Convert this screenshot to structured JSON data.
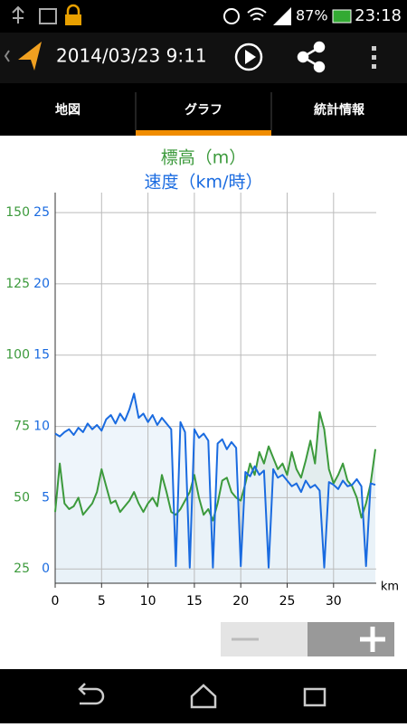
{
  "status_bar": {
    "battery": "87%",
    "time": "23:18"
  },
  "toolbar": {
    "title": "2014/03/23 9:11"
  },
  "tabs": [
    "地図",
    "グラフ",
    "統計情報"
  ],
  "chart_data": {
    "type": "line",
    "x": [
      0,
      0.5,
      1,
      1.5,
      2,
      2.5,
      3,
      3.5,
      4,
      4.5,
      5,
      5.5,
      6,
      6.5,
      7,
      7.5,
      8,
      8.5,
      9,
      9.5,
      10,
      10.5,
      11,
      11.5,
      12,
      12.5,
      13,
      13.5,
      14,
      14.5,
      15,
      15.5,
      16,
      16.5,
      17,
      17.5,
      18,
      18.5,
      19,
      19.5,
      20,
      20.5,
      21,
      21.5,
      22,
      22.5,
      23,
      23.5,
      24,
      24.5,
      25,
      25.5,
      26,
      26.5,
      27,
      27.5,
      28,
      28.5,
      29,
      29.5,
      30,
      30.5,
      31,
      31.5,
      32,
      32.5,
      33,
      33.5,
      34,
      34.5
    ],
    "series": [
      {
        "name": "標高（m）",
        "color": "#3c9a3c",
        "fill": "#dce9ea",
        "values": [
          45,
          62,
          48,
          46,
          47,
          50,
          44,
          46,
          48,
          52,
          60,
          54,
          48,
          49,
          45,
          47,
          49,
          52,
          48,
          45,
          48,
          50,
          47,
          58,
          52,
          45,
          44,
          46,
          49,
          52,
          58,
          50,
          44,
          46,
          42,
          48,
          56,
          57,
          52,
          50,
          49,
          55,
          62,
          58,
          66,
          62,
          68,
          64,
          60,
          62,
          58,
          66,
          60,
          57,
          63,
          70,
          62,
          80,
          74,
          60,
          55,
          58,
          62,
          56,
          54,
          50,
          43,
          48,
          55,
          67
        ]
      },
      {
        "name": "速度（km/時）",
        "color": "#1a6be0",
        "fill": "#eaf2fa",
        "axis": "y2",
        "values": [
          9.5,
          9.3,
          9.6,
          9.8,
          9.4,
          9.9,
          9.6,
          10.2,
          9.8,
          10.1,
          9.7,
          10.5,
          10.8,
          10.2,
          10.9,
          10.4,
          11.2,
          12.3,
          10.6,
          10.9,
          10.3,
          10.8,
          10.1,
          10.6,
          10.2,
          9.8,
          0.2,
          10.3,
          9.6,
          0.1,
          9.8,
          9.2,
          9.5,
          9.0,
          0.1,
          8.8,
          9.1,
          8.4,
          8.9,
          8.5,
          0.2,
          6.8,
          6.5,
          7.2,
          6.6,
          6.9,
          0.1,
          7.0,
          6.4,
          6.6,
          6.2,
          5.8,
          6.0,
          5.4,
          6.2,
          5.7,
          5.9,
          5.5,
          0.1,
          6.1,
          5.9,
          5.6,
          6.2,
          5.8,
          5.9,
          6.3,
          5.8,
          0.2,
          6.0,
          5.9
        ]
      }
    ],
    "xlabel": "km",
    "xlim": [
      0,
      34.6
    ],
    "xticks": [
      0,
      5,
      10,
      15,
      20,
      25,
      30
    ],
    "ylim": [
      20,
      157
    ],
    "yticks": [
      25,
      50,
      75,
      100,
      125,
      150
    ],
    "y2lim": [
      -1,
      26.4
    ],
    "y2ticks": [
      0,
      5,
      10,
      15,
      20,
      25
    ],
    "grid": true
  }
}
